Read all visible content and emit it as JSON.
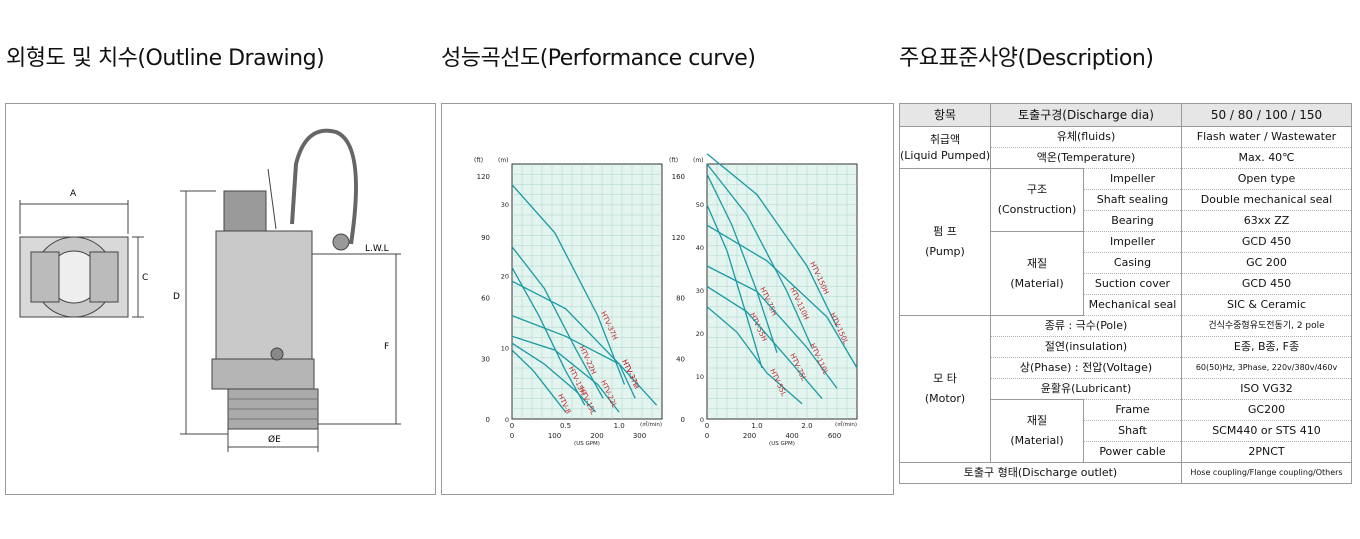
{
  "headings": {
    "outline": "외형도 및 치수(Outline Drawing)",
    "performance": "성능곡선도(Performance curve)",
    "description": "주요표준사양(Description)"
  },
  "outline": {
    "dim_a": "A",
    "dim_c": "C",
    "dim_d": "D",
    "dim_f": "F",
    "dim_e": "ØE",
    "lwl": "L.W.L"
  },
  "chart_data": [
    {
      "type": "line",
      "unit_left": "(ft)",
      "unit_right": "(m)",
      "flow_unit": "(㎥/min)",
      "gpm_unit": "(US GPM)",
      "y_ft_ticks": [
        "120",
        "90",
        "60",
        "30",
        "0"
      ],
      "y_m_ticks": [
        "30",
        "20",
        "10",
        "0"
      ],
      "x_ticks": [
        "0",
        "0.5",
        "1.0"
      ],
      "gpm_ticks": [
        "0",
        "100",
        "200",
        "300"
      ],
      "ylim_m": [
        0,
        37
      ],
      "xlim": [
        0,
        1.4
      ],
      "series": [
        {
          "name": "HTV-37H",
          "x": [
            0,
            0.4,
            0.8,
            1.05
          ],
          "y": [
            34,
            27,
            15,
            5
          ]
        },
        {
          "name": "HTV-22H",
          "x": [
            0,
            0.3,
            0.6,
            0.85
          ],
          "y": [
            25,
            19,
            10,
            3
          ]
        },
        {
          "name": "HTV-15H",
          "x": [
            0,
            0.25,
            0.5,
            0.68
          ],
          "y": [
            22,
            15,
            7,
            2
          ]
        },
        {
          "name": "HTV-37M",
          "x": [
            0,
            0.5,
            1.0,
            1.15
          ],
          "y": [
            20,
            16,
            8,
            3
          ]
        },
        {
          "name": "HTV-37L",
          "x": [
            0,
            0.5,
            1.0,
            1.35
          ],
          "y": [
            15,
            12,
            8,
            2
          ]
        },
        {
          "name": "HTV-22L",
          "x": [
            0,
            0.4,
            0.8,
            1.0
          ],
          "y": [
            12,
            10,
            5,
            1
          ]
        },
        {
          "name": "HTV-15L",
          "x": [
            0,
            0.3,
            0.6,
            0.78
          ],
          "y": [
            11,
            8,
            4,
            1
          ]
        },
        {
          "name": "HTV-8",
          "x": [
            0,
            0.2,
            0.4,
            0.5
          ],
          "y": [
            10,
            7,
            3,
            1
          ]
        }
      ]
    },
    {
      "type": "line",
      "unit_left": "(ft)",
      "unit_right": "(m)",
      "flow_unit": "(㎥/min)",
      "gpm_unit": "(US GPM)",
      "y_ft_ticks": [
        "160",
        "120",
        "80",
        "40",
        "0"
      ],
      "y_m_ticks": [
        "50",
        "40",
        "30",
        "20",
        "10",
        "0"
      ],
      "x_ticks": [
        "0",
        "1.0",
        "2.0"
      ],
      "gpm_ticks": [
        "0",
        "200",
        "400",
        "600"
      ],
      "ylim_m": [
        0,
        50
      ],
      "xlim": [
        0,
        3.0
      ],
      "series": [
        {
          "name": "HTV-75H",
          "x": [
            0,
            0.5,
            1.0,
            1.4
          ],
          "y": [
            48,
            38,
            25,
            13
          ]
        },
        {
          "name": "HTV-55H",
          "x": [
            0,
            0.4,
            0.8,
            1.1
          ],
          "y": [
            42,
            33,
            20,
            10
          ]
        },
        {
          "name": "HTV-110H",
          "x": [
            0,
            0.8,
            1.6,
            2.1
          ],
          "y": [
            50,
            40,
            25,
            14
          ]
        },
        {
          "name": "HTV-150H",
          "x": [
            0,
            1.0,
            2.0,
            2.6
          ],
          "y": [
            52,
            44,
            30,
            18
          ]
        },
        {
          "name": "HTV-150L",
          "x": [
            0,
            1.2,
            2.4,
            3.0
          ],
          "y": [
            38,
            31,
            20,
            10
          ]
        },
        {
          "name": "HTV-110L",
          "x": [
            0,
            1.0,
            2.0,
            2.6
          ],
          "y": [
            30,
            25,
            14,
            6
          ]
        },
        {
          "name": "HTV-75L",
          "x": [
            0,
            0.8,
            1.6,
            2.3
          ],
          "y": [
            26,
            21,
            12,
            4
          ]
        },
        {
          "name": "HTV-55L",
          "x": [
            0,
            0.6,
            1.2,
            1.9
          ],
          "y": [
            22,
            17,
            9,
            3
          ]
        }
      ]
    }
  ],
  "spec": {
    "hdr": [
      "항목",
      "토출구경(Discharge dia)",
      "50 / 80 / 100 / 150"
    ],
    "liquid_group": [
      "취급액",
      "(Liquid Pumped)"
    ],
    "fluids": [
      "유체(fluids)",
      "Flash water / Wastewater"
    ],
    "temp": [
      "액온(Temperature)",
      "Max. 40℃"
    ],
    "pump_group": [
      "펌 프",
      "(Pump)"
    ],
    "construction": [
      "구조",
      "(Construction)"
    ],
    "material": [
      "재질",
      "(Material)"
    ],
    "impeller_c": [
      "Impeller",
      "Open type"
    ],
    "shaft_seal": [
      "Shaft sealing",
      "Double mechanical seal"
    ],
    "bearing": [
      "Bearing",
      "63xx ZZ"
    ],
    "impeller_m": [
      "Impeller",
      "GCD 450"
    ],
    "casing": [
      "Casing",
      "GC 200"
    ],
    "suction": [
      "Suction cover",
      "GCD 450"
    ],
    "mech_seal": [
      "Mechanical seal",
      "SIC & Ceramic"
    ],
    "motor_group": [
      "모 타",
      "(Motor)"
    ],
    "pole": [
      "종류 : 극수(Pole)",
      "건식수중형유도전동기, 2 pole"
    ],
    "insulation": [
      "절연(insulation)",
      "E종, B종, F종"
    ],
    "voltage": [
      "상(Phase) : 전압(Voltage)",
      "60(50)Hz, 3Phase, 220v/380v/460v"
    ],
    "lubricant": [
      "윤활유(Lubricant)",
      "ISO VG32"
    ],
    "motor_material": [
      "재질",
      "(Material)"
    ],
    "frame": [
      "Frame",
      "GC200"
    ],
    "shaft": [
      "Shaft",
      "SCM440 or STS 410"
    ],
    "cable": [
      "Power cable",
      "2PNCT"
    ],
    "outlet": [
      "토출구 형태(Discharge outlet)",
      "Hose coupling/Flange coupling/Others"
    ]
  }
}
